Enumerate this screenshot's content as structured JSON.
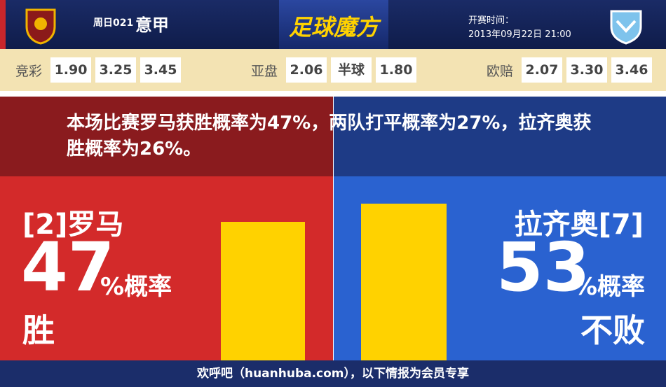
{
  "header": {
    "match_no": "周日021",
    "league": "意甲",
    "brand": "足球魔方",
    "time_label": "开赛时间：",
    "time": "2013年09月22日 21:00"
  },
  "odds": [
    {
      "label": "竞彩",
      "values": [
        "1.90",
        "3.25",
        "3.45"
      ]
    },
    {
      "label": "亚盘",
      "values": [
        "2.06",
        "半球",
        "1.80"
      ]
    },
    {
      "label": "欧赔",
      "values": [
        "2.07",
        "3.30",
        "3.46"
      ]
    }
  ],
  "summary": "本场比赛罗马获胜概率为47%，两队打平概率为27%，拉齐奥获胜概率为26%。",
  "teams": [
    {
      "name": "[2]罗马",
      "percent": 47,
      "unit": "%概率",
      "outcome": "胜",
      "color": "#d32a2a",
      "bar_color": "#ffd200"
    },
    {
      "name": "拉齐奥[7]",
      "percent": 53,
      "unit": "%概率",
      "outcome": "不败",
      "color": "#2a62d0",
      "bar_color": "#ffd200"
    }
  ],
  "footer": "欢呼吧（huanhuba.com），以下情报为会员专享"
}
